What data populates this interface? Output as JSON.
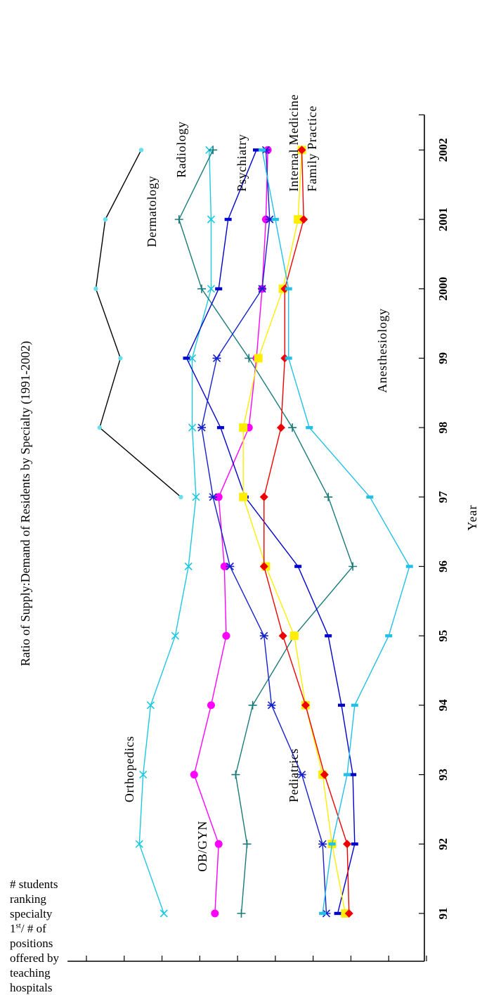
{
  "chart_data": {
    "type": "line",
    "title": "Ratio of Supply:Demand of Residents by Specialty (1991-2002)",
    "xlabel": "Year",
    "ylabel_lines": [
      "# students",
      "ranking",
      "specialty",
      "1st/ # of",
      "positions",
      "offered by",
      "teaching",
      "hospitals"
    ],
    "ylabel_parts": {
      "line4_pre": "1",
      "line4_sup": "st",
      "line4_post": "/ # of"
    },
    "ylim": [
      0.3,
      2.2
    ],
    "yticks": [
      "2.1",
      "1.9",
      "1.7",
      "1.5",
      "1.3",
      "1.1",
      "0.9",
      "0.7",
      "0.5",
      "0.3"
    ],
    "x": [
      91,
      92,
      93,
      94,
      95,
      96,
      97,
      98,
      99,
      2000,
      2001,
      2002
    ],
    "xtick_labels": [
      "91",
      "92",
      "93",
      "94",
      "95",
      "96",
      "97",
      "98",
      "99",
      "2000",
      "2001",
      "2002"
    ],
    "grid": false,
    "rotation": "rotated 90 degrees counter-clockwise",
    "series": [
      {
        "name": "Dermatology",
        "color": "#000000",
        "marker": "dot",
        "markerColor": "#66e0ee",
        "values": [
          null,
          null,
          null,
          null,
          null,
          null,
          1.6,
          2.03,
          1.92,
          2.05,
          2.0,
          1.81
        ]
      },
      {
        "name": "Orthopedics",
        "color": "#1ec8e0",
        "marker": "x",
        "values": [
          1.69,
          1.82,
          1.8,
          1.76,
          1.63,
          1.56,
          1.52,
          1.54,
          1.54,
          1.44,
          1.44,
          1.45
        ]
      },
      {
        "name": "OB/GYN",
        "color": "#ff00ff",
        "marker": "circle",
        "values": [
          1.42,
          1.4,
          1.53,
          1.44,
          1.36,
          1.37,
          1.4,
          1.24,
          1.2,
          1.17,
          1.15,
          1.14
        ]
      },
      {
        "name": "Radiology",
        "color": "#1a7a7a",
        "marker": "plus",
        "values": [
          1.28,
          1.25,
          1.31,
          1.22,
          1.0,
          0.69,
          0.82,
          1.01,
          1.24,
          1.49,
          1.61,
          1.43
        ]
      },
      {
        "name": "Psychiatry",
        "color": "#0000cc",
        "marker": "tick",
        "values": [
          0.77,
          0.68,
          0.69,
          0.75,
          0.82,
          0.98,
          1.26,
          1.39,
          1.57,
          1.4,
          1.35,
          1.2
        ]
      },
      {
        "name": "Internal Medicine",
        "color": "#1520cc",
        "marker": "star",
        "values": [
          0.83,
          0.85,
          0.96,
          1.12,
          1.16,
          1.34,
          1.43,
          1.49,
          1.41,
          1.17,
          1.13,
          1.15
        ]
      },
      {
        "name": "Family Practice",
        "color": "#ffee00",
        "marker": "square",
        "values": [
          0.73,
          0.8,
          0.85,
          0.94,
          1.0,
          1.15,
          1.27,
          1.27,
          1.19,
          1.06,
          0.98,
          0.96
        ]
      },
      {
        "name": "Pediatrics",
        "color": "#ee0000",
        "marker": "diamond",
        "values": [
          0.71,
          0.72,
          0.84,
          0.94,
          1.06,
          1.16,
          1.16,
          1.07,
          1.05,
          1.05,
          0.95,
          0.96
        ]
      },
      {
        "name": "Anesthesiology",
        "color": "#22c0e8",
        "marker": "tick",
        "values": [
          0.85,
          0.8,
          0.72,
          0.68,
          0.5,
          0.39,
          0.6,
          0.92,
          1.03,
          1.03,
          1.1,
          1.17
        ]
      }
    ],
    "annotations": [
      {
        "text": "Dermatology"
      },
      {
        "text": "Orthopedics"
      },
      {
        "text": "OB/GYN"
      },
      {
        "text": "Radiology"
      },
      {
        "text": "Psychiatry"
      },
      {
        "text": "Internal Medicine"
      },
      {
        "text": "Family Practice"
      },
      {
        "text": "Pediatrics"
      },
      {
        "text": "Anesthesiology"
      }
    ]
  }
}
